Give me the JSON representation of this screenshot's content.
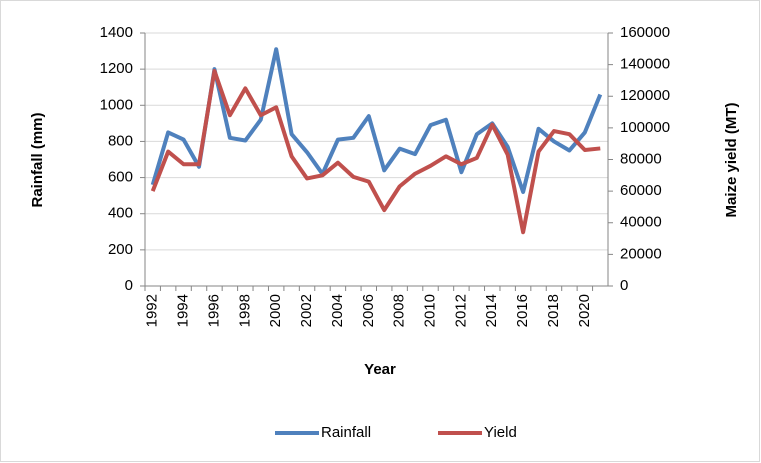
{
  "chart_data": {
    "type": "line",
    "x_label": "Year",
    "y_label": "Rainfall (mm)",
    "y2_label": "Maize yield (MT)",
    "categories": [
      "1992",
      null,
      "1994",
      null,
      "1996",
      null,
      "1998",
      null,
      "2000",
      null,
      "2002",
      null,
      "2004",
      null,
      "2006",
      null,
      "2008",
      null,
      "2010",
      null,
      "2012",
      null,
      "2014",
      null,
      "2016",
      null,
      "2018",
      null,
      "2020",
      null
    ],
    "series": [
      {
        "name": "Rainfall",
        "color": "#4f81bd",
        "values": [
          560,
          850,
          810,
          660,
          1200,
          820,
          805,
          920,
          1310,
          840,
          740,
          620,
          810,
          820,
          940,
          640,
          760,
          730,
          890,
          920,
          630,
          840,
          900,
          770,
          520,
          870,
          800,
          750,
          850,
          1060
        ]
      },
      {
        "name": "Yield",
        "color": "#c0504d",
        "axis": "y2",
        "values": [
          60000,
          85000,
          77000,
          77000,
          136000,
          108000,
          125000,
          108000,
          113000,
          82000,
          68000,
          70000,
          78000,
          69000,
          66000,
          48000,
          63000,
          71000,
          76000,
          82000,
          77000,
          81000,
          102000,
          83000,
          34000,
          85000,
          98000,
          96000,
          86000,
          87000
        ]
      }
    ],
    "ylim": [
      0,
      1400
    ],
    "yticks": [
      0,
      200,
      400,
      600,
      800,
      1000,
      1200,
      1400
    ],
    "y2lim": [
      0,
      160000
    ],
    "y2ticks": [
      0,
      20000,
      40000,
      60000,
      80000,
      100000,
      120000,
      140000,
      160000
    ],
    "grid": true,
    "legend": "bottom"
  }
}
